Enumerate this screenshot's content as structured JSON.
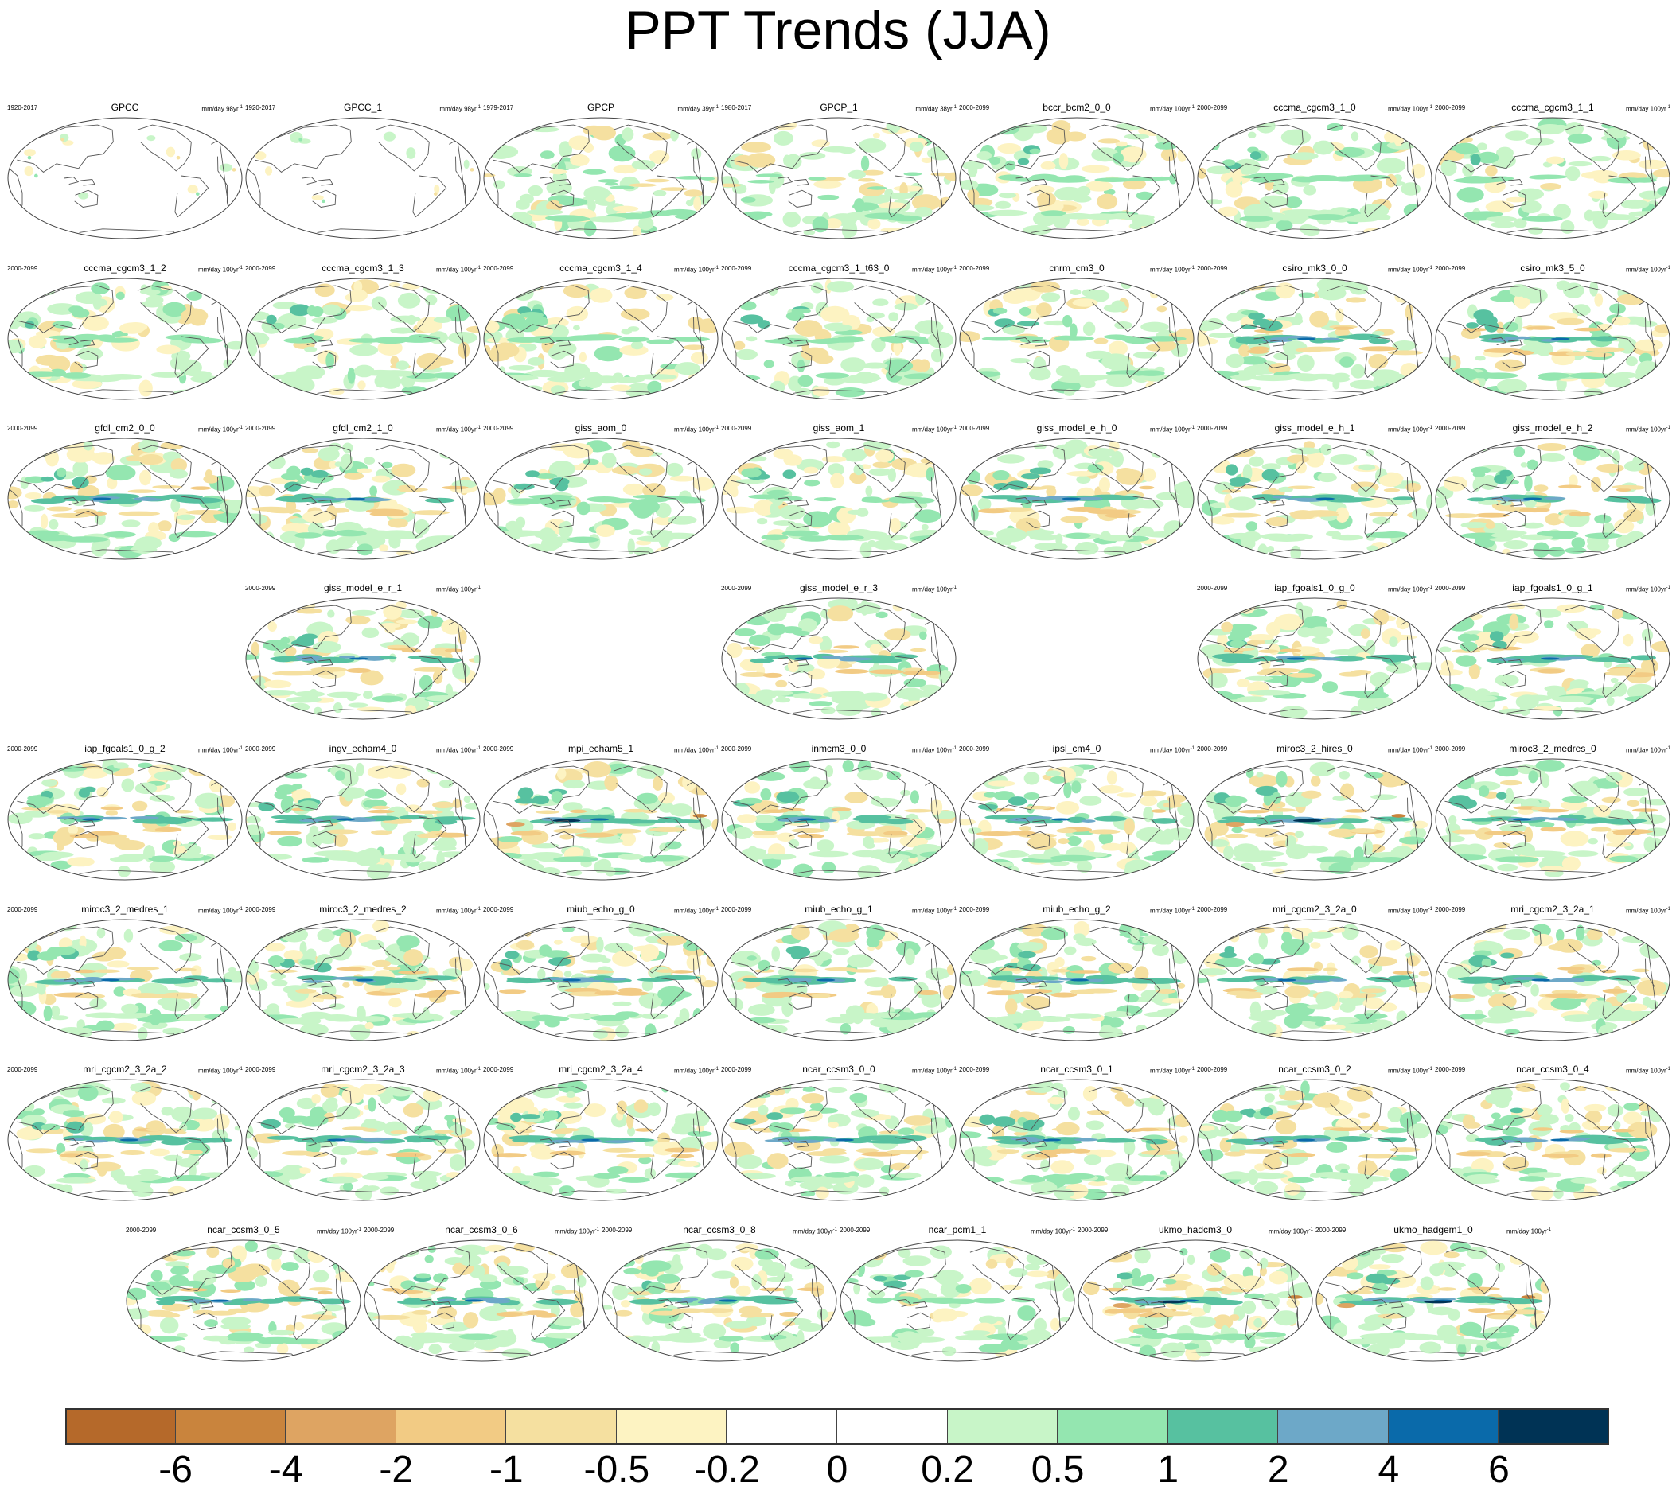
{
  "title": "PPT Trends (JJA)",
  "chart_data": {
    "type": "heatmap",
    "title": "PPT Trends (JJA)",
    "description_units": "mm/day",
    "colorbar": {
      "levels": [
        "-6",
        "-4",
        "-2",
        "-1",
        "-0.5",
        "-0.2",
        "0",
        "0.2",
        "0.5",
        "1",
        "2",
        "4",
        "6"
      ],
      "colors": [
        "#b5692a",
        "#c9843d",
        "#dea462",
        "#f2cb84",
        "#f5e0a0",
        "#fdf3c2",
        "#ffffff",
        "#ffffff",
        "#c8f5c8",
        "#94e6b0",
        "#57c1a0",
        "#6da8c8",
        "#0a6aaa",
        "#003355"
      ]
    },
    "panels": [
      {
        "name": "GPCC",
        "period": "1920-2017",
        "units": "mm/day 98yr",
        "sup": "-1",
        "style": "obs_land"
      },
      {
        "name": "GPCC_1",
        "period": "1920-2017",
        "units": "mm/day 98yr",
        "sup": "-1",
        "style": "obs_land"
      },
      {
        "name": "GPCP",
        "period": "1979-2017",
        "units": "mm/day 39yr",
        "sup": "-1",
        "style": "obs"
      },
      {
        "name": "GPCP_1",
        "period": "1980-2017",
        "units": "mm/day 38yr",
        "sup": "-1",
        "style": "obs"
      },
      {
        "name": "bccr_bcm2_0_0",
        "period": "2000-2099",
        "units": "mm/day 100yr",
        "sup": "-1",
        "style": "model"
      },
      {
        "name": "cccma_cgcm3_1_0",
        "period": "2000-2099",
        "units": "mm/day 100yr",
        "sup": "-1",
        "style": "model"
      },
      {
        "name": "cccma_cgcm3_1_1",
        "period": "2000-2099",
        "units": "mm/day 100yr",
        "sup": "-1",
        "style": "model"
      },
      {
        "name": "cccma_cgcm3_1_2",
        "period": "2000-2099",
        "units": "mm/day 100yr",
        "sup": "-1",
        "style": "model"
      },
      {
        "name": "cccma_cgcm3_1_3",
        "period": "2000-2099",
        "units": "mm/day 100yr",
        "sup": "-1",
        "style": "model"
      },
      {
        "name": "cccma_cgcm3_1_4",
        "period": "2000-2099",
        "units": "mm/day 100yr",
        "sup": "-1",
        "style": "model"
      },
      {
        "name": "cccma_cgcm3_1_t63_0",
        "period": "2000-2099",
        "units": "mm/day 100yr",
        "sup": "-1",
        "style": "model"
      },
      {
        "name": "cnrm_cm3_0",
        "period": "2000-2099",
        "units": "mm/day 100yr",
        "sup": "-1",
        "style": "model"
      },
      {
        "name": "csiro_mk3_0_0",
        "period": "2000-2099",
        "units": "mm/day 100yr",
        "sup": "-1",
        "style": "strong"
      },
      {
        "name": "csiro_mk3_5_0",
        "period": "2000-2099",
        "units": "mm/day 100yr",
        "sup": "-1",
        "style": "strong"
      },
      {
        "name": "gfdl_cm2_0_0",
        "period": "2000-2099",
        "units": "mm/day 100yr",
        "sup": "-1",
        "style": "strong"
      },
      {
        "name": "gfdl_cm2_1_0",
        "period": "2000-2099",
        "units": "mm/day 100yr",
        "sup": "-1",
        "style": "strong"
      },
      {
        "name": "giss_aom_0",
        "period": "2000-2099",
        "units": "mm/day 100yr",
        "sup": "-1",
        "style": "model"
      },
      {
        "name": "giss_aom_1",
        "period": "2000-2099",
        "units": "mm/day 100yr",
        "sup": "-1",
        "style": "model"
      },
      {
        "name": "giss_model_e_h_0",
        "period": "2000-2099",
        "units": "mm/day 100yr",
        "sup": "-1",
        "style": "strong"
      },
      {
        "name": "giss_model_e_h_1",
        "period": "2000-2099",
        "units": "mm/day 100yr",
        "sup": "-1",
        "style": "strong"
      },
      {
        "name": "giss_model_e_h_2",
        "period": "2000-2099",
        "units": "mm/day 100yr",
        "sup": "-1",
        "style": "strong"
      },
      {
        "name": "giss_model_e_r_1",
        "period": "2000-2099",
        "units": "mm/day 100yr",
        "sup": "-1",
        "style": "strong"
      },
      {
        "name": "giss_model_e_r_3",
        "period": "2000-2099",
        "units": "mm/day 100yr",
        "sup": "-1",
        "style": "strong"
      },
      {
        "name": "iap_fgoals1_0_g_0",
        "period": "2000-2099",
        "units": "mm/day 100yr",
        "sup": "-1",
        "style": "strong"
      },
      {
        "name": "iap_fgoals1_0_g_1",
        "period": "2000-2099",
        "units": "mm/day 100yr",
        "sup": "-1",
        "style": "strong"
      },
      {
        "name": "iap_fgoals1_0_g_2",
        "period": "2000-2099",
        "units": "mm/day 100yr",
        "sup": "-1",
        "style": "strong"
      },
      {
        "name": "ingv_echam4_0",
        "period": "2000-2099",
        "units": "mm/day 100yr",
        "sup": "-1",
        "style": "strong"
      },
      {
        "name": "mpi_echam5_1",
        "period": "2000-2099",
        "units": "mm/day 100yr",
        "sup": "-1",
        "style": "vstrong"
      },
      {
        "name": "inmcm3_0_0",
        "period": "2000-2099",
        "units": "mm/day 100yr",
        "sup": "-1",
        "style": "strong"
      },
      {
        "name": "ipsl_cm4_0",
        "period": "2000-2099",
        "units": "mm/day 100yr",
        "sup": "-1",
        "style": "strong"
      },
      {
        "name": "miroc3_2_hires_0",
        "period": "2000-2099",
        "units": "mm/day 100yr",
        "sup": "-1",
        "style": "vstrong"
      },
      {
        "name": "miroc3_2_medres_0",
        "period": "2000-2099",
        "units": "mm/day 100yr",
        "sup": "-1",
        "style": "strong"
      },
      {
        "name": "miroc3_2_medres_1",
        "period": "2000-2099",
        "units": "mm/day 100yr",
        "sup": "-1",
        "style": "strong"
      },
      {
        "name": "miroc3_2_medres_2",
        "period": "2000-2099",
        "units": "mm/day 100yr",
        "sup": "-1",
        "style": "strong"
      },
      {
        "name": "miub_echo_g_0",
        "period": "2000-2099",
        "units": "mm/day 100yr",
        "sup": "-1",
        "style": "strong"
      },
      {
        "name": "miub_echo_g_1",
        "period": "2000-2099",
        "units": "mm/day 100yr",
        "sup": "-1",
        "style": "strong"
      },
      {
        "name": "miub_echo_g_2",
        "period": "2000-2099",
        "units": "mm/day 100yr",
        "sup": "-1",
        "style": "strong"
      },
      {
        "name": "mri_cgcm2_3_2a_0",
        "period": "2000-2099",
        "units": "mm/day 100yr",
        "sup": "-1",
        "style": "strong"
      },
      {
        "name": "mri_cgcm2_3_2a_1",
        "period": "2000-2099",
        "units": "mm/day 100yr",
        "sup": "-1",
        "style": "strong"
      },
      {
        "name": "mri_cgcm2_3_2a_2",
        "period": "2000-2099",
        "units": "mm/day 100yr",
        "sup": "-1",
        "style": "strong"
      },
      {
        "name": "mri_cgcm2_3_2a_3",
        "period": "2000-2099",
        "units": "mm/day 100yr",
        "sup": "-1",
        "style": "strong"
      },
      {
        "name": "mri_cgcm2_3_2a_4",
        "period": "2000-2099",
        "units": "mm/day 100yr",
        "sup": "-1",
        "style": "strong"
      },
      {
        "name": "ncar_ccsm3_0_0",
        "period": "2000-2099",
        "units": "mm/day 100yr",
        "sup": "-1",
        "style": "strong"
      },
      {
        "name": "ncar_ccsm3_0_1",
        "period": "2000-2099",
        "units": "mm/day 100yr",
        "sup": "-1",
        "style": "strong"
      },
      {
        "name": "ncar_ccsm3_0_2",
        "period": "2000-2099",
        "units": "mm/day 100yr",
        "sup": "-1",
        "style": "strong"
      },
      {
        "name": "ncar_ccsm3_0_4",
        "period": "2000-2099",
        "units": "mm/day 100yr",
        "sup": "-1",
        "style": "strong"
      },
      {
        "name": "ncar_ccsm3_0_5",
        "period": "2000-2099",
        "units": "mm/day 100yr",
        "sup": "-1",
        "style": "strong"
      },
      {
        "name": "ncar_ccsm3_0_6",
        "period": "2000-2099",
        "units": "mm/day 100yr",
        "sup": "-1",
        "style": "strong"
      },
      {
        "name": "ncar_ccsm3_0_8",
        "period": "2000-2099",
        "units": "mm/day 100yr",
        "sup": "-1",
        "style": "strong"
      },
      {
        "name": "ncar_pcm1_1",
        "period": "2000-2099",
        "units": "mm/day 100yr",
        "sup": "-1",
        "style": "model"
      },
      {
        "name": "ukmo_hadcm3_0",
        "period": "2000-2099",
        "units": "mm/day 100yr",
        "sup": "-1",
        "style": "vstrong"
      },
      {
        "name": "ukmo_hadgem1_0",
        "period": "2000-2099",
        "units": "mm/day 100yr",
        "sup": "-1",
        "style": "vstrong"
      }
    ]
  }
}
